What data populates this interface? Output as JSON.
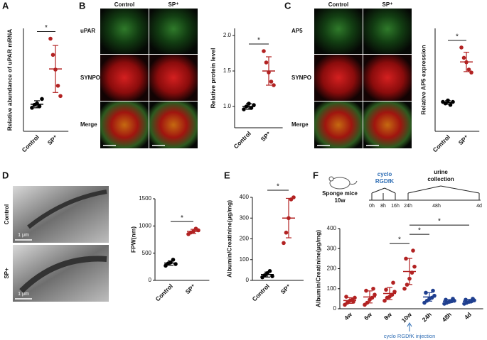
{
  "panel_letters": [
    "A",
    "B",
    "C",
    "D",
    "E",
    "F"
  ],
  "image_panels": [
    {
      "columns": [
        "Control",
        "SP⁺"
      ],
      "rows": [
        "uPAR",
        "SYNPO",
        "Merge"
      ]
    },
    {
      "columns": [
        "Control",
        "SP⁺"
      ],
      "rows": [
        "AP5",
        "SYNPO",
        "Merge"
      ]
    },
    {
      "rows": [
        "Control",
        "SP+"
      ],
      "scale_labels": [
        "1 μm",
        "1 μm"
      ]
    }
  ],
  "timeline": {
    "animal": "Sponge mice",
    "age": "10w",
    "drug": [
      "cyclo",
      "RGDfK"
    ],
    "collection": [
      "urine",
      "collection"
    ],
    "times": [
      "0h",
      "8h",
      "16h",
      "24h",
      "48h",
      "4d"
    ]
  },
  "chart_data": [
    {
      "type": "dot",
      "ylabel": "Relative abundance of uPAR mRNA",
      "categories": [
        "Control",
        "SP⁺"
      ],
      "colors": [
        "#000000",
        "#b22222"
      ],
      "points": [
        [
          0.8,
          0.9,
          0.95,
          0.85,
          1.1
        ],
        [
          3.15,
          2.6,
          2.1,
          1.55,
          1.2
        ]
      ],
      "means": [
        0.92,
        2.12
      ],
      "errors": [
        0.12,
        0.8
      ],
      "ylim": [
        0,
        3.5
      ],
      "significance": [
        {
          "pair": [
            "Control",
            "SP⁺"
          ],
          "label": "*"
        }
      ]
    },
    {
      "type": "dot",
      "ylabel": "Relative protein level",
      "categories": [
        "Control",
        "SP⁺"
      ],
      "colors": [
        "#000000",
        "#b22222"
      ],
      "points": [
        [
          0.96,
          1.0,
          1.04,
          0.98,
          1.02
        ],
        [
          1.78,
          1.62,
          1.48,
          1.35,
          1.3
        ]
      ],
      "means": [
        1.0,
        1.5
      ],
      "errors": [
        0.04,
        0.2
      ],
      "ylim": [
        0.7,
        2.1
      ],
      "yticks": [
        {
          "value": 1,
          "label": "1.0"
        },
        {
          "value": 1.5,
          "label": "1.5"
        },
        {
          "value": 2,
          "label": "2.0"
        }
      ],
      "significance": [
        {
          "pair": [
            "Control",
            "SP⁺"
          ],
          "label": "*"
        }
      ]
    },
    {
      "type": "dot",
      "ylabel": "Relative AP5 expression",
      "categories": [
        "Control",
        "SP⁺"
      ],
      "colors": [
        "#000000",
        "#b22222"
      ],
      "points": [
        [
          1.0,
          0.95,
          1.05,
          0.9,
          1.0
        ],
        [
          2.85,
          2.5,
          2.35,
          2.1,
          2.0
        ]
      ],
      "means": [
        0.98,
        2.36
      ],
      "errors": [
        0.06,
        0.33
      ],
      "ylim": [
        0,
        3.5
      ],
      "significance": [
        {
          "pair": [
            "Control",
            "SP⁺"
          ],
          "label": "*"
        }
      ]
    },
    {
      "type": "dot",
      "ylabel": "FPW(nm)",
      "categories": [
        "Control",
        "SP⁺"
      ],
      "colors": [
        "#000000",
        "#b22222"
      ],
      "points": [
        [
          270,
          310,
          330,
          380,
          300
        ],
        [
          850,
          880,
          900,
          950,
          920
        ]
      ],
      "means": [
        318,
        900
      ],
      "errors": [
        40,
        38
      ],
      "ylim": [
        0,
        1500
      ],
      "yticks": [
        0,
        500,
        1000,
        1500
      ],
      "significance": [
        {
          "pair": [
            "Control",
            "SP⁺"
          ],
          "label": "*"
        }
      ]
    },
    {
      "type": "dot",
      "ylabel": "Albumin/Creatinine(μg/mg)",
      "categories": [
        "Control",
        "SP⁺"
      ],
      "colors": [
        "#000000",
        "#b22222"
      ],
      "points": [
        [
          15,
          25,
          35,
          45,
          20
        ],
        [
          180,
          230,
          300,
          390,
          400
        ]
      ],
      "means": [
        28,
        300
      ],
      "errors": [
        12,
        95
      ],
      "ylim": [
        0,
        400
      ],
      "yticks": [
        0,
        100,
        200,
        300,
        400
      ],
      "significance": [
        {
          "pair": [
            "Control",
            "SP⁺"
          ],
          "label": "*"
        }
      ]
    },
    {
      "type": "dot",
      "ylabel": "Albumin/Creatinine(μg/mg)",
      "categories": [
        "4w",
        "6w",
        "8w",
        "10w",
        "24h",
        "48h",
        "4d"
      ],
      "colors": [
        "#b22222",
        "#b22222",
        "#b22222",
        "#b22222",
        "#1f3f8f",
        "#1f3f8f",
        "#1f3f8f"
      ],
      "points": [
        [
          20,
          30,
          40,
          45,
          55,
          60,
          35
        ],
        [
          20,
          30,
          45,
          55,
          70,
          90,
          100
        ],
        [
          40,
          55,
          60,
          70,
          85,
          95,
          130
        ],
        [
          100,
          120,
          150,
          180,
          210,
          250,
          290
        ],
        [
          30,
          40,
          50,
          55,
          65,
          80,
          90
        ],
        [
          25,
          30,
          35,
          38,
          40,
          45,
          50
        ],
        [
          25,
          30,
          35,
          38,
          42,
          45,
          50
        ]
      ],
      "means": [
        41,
        59,
        76,
        186,
        59,
        38,
        38
      ],
      "errors": [
        14,
        30,
        30,
        65,
        21,
        8,
        9
      ],
      "ylim": [
        0,
        400
      ],
      "yticks": [
        0,
        100,
        200,
        300,
        400
      ],
      "significance": [
        {
          "pair": [
            "8w",
            "10w"
          ],
          "label": "*"
        },
        {
          "pair": [
            "10w",
            "24h"
          ],
          "label": "*"
        },
        {
          "pair": [
            "10w",
            "4d"
          ],
          "label": "*"
        }
      ],
      "annotation": "cyclo RGDfK injection"
    }
  ]
}
